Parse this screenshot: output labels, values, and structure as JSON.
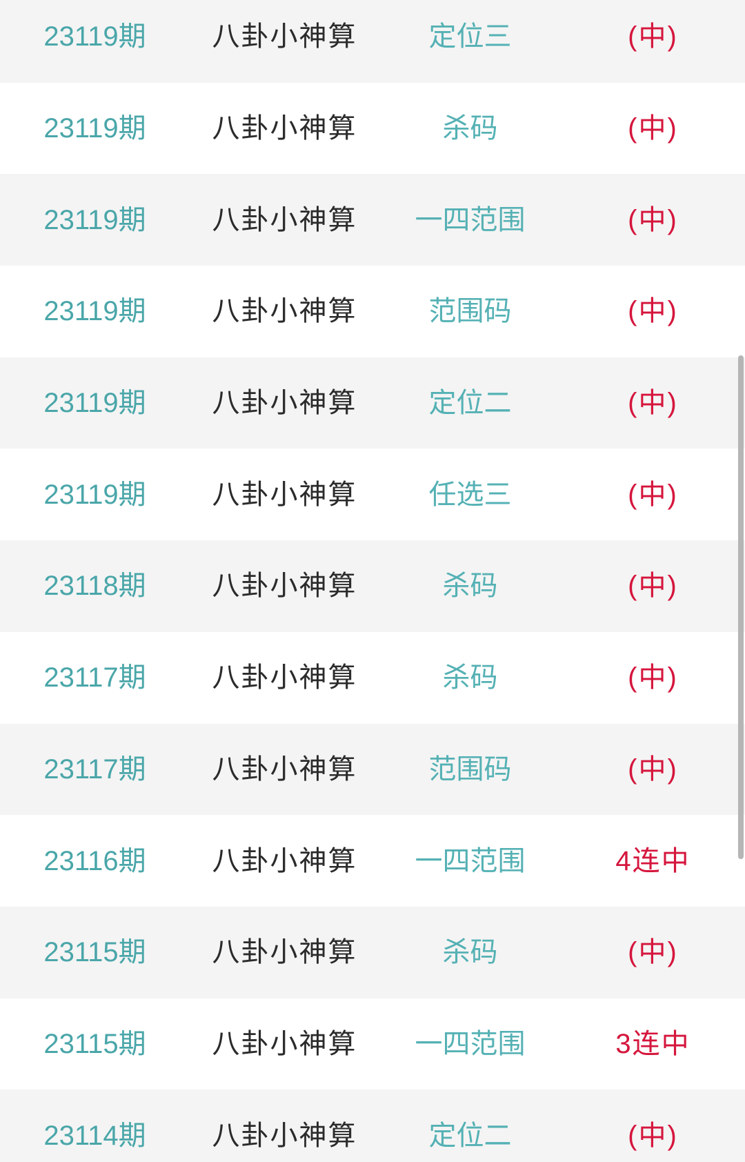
{
  "colors": {
    "period_teal": "#4aa6a9",
    "category_teal": "#55b1b4",
    "expert_dark": "#2b2b2b",
    "result_red": "#d5163d",
    "row_alt_bg": "#f4f4f4",
    "scrollbar_gray": "#b5b5b5"
  },
  "list": {
    "rows": [
      {
        "period": "23119期",
        "expert": "八卦小神算",
        "category": "定位三",
        "result": "(中)"
      },
      {
        "period": "23119期",
        "expert": "八卦小神算",
        "category": "杀码",
        "result": "(中)"
      },
      {
        "period": "23119期",
        "expert": "八卦小神算",
        "category": "一四范围",
        "result": "(中)"
      },
      {
        "period": "23119期",
        "expert": "八卦小神算",
        "category": "范围码",
        "result": "(中)"
      },
      {
        "period": "23119期",
        "expert": "八卦小神算",
        "category": "定位二",
        "result": "(中)"
      },
      {
        "period": "23119期",
        "expert": "八卦小神算",
        "category": "任选三",
        "result": "(中)"
      },
      {
        "period": "23118期",
        "expert": "八卦小神算",
        "category": "杀码",
        "result": "(中)"
      },
      {
        "period": "23117期",
        "expert": "八卦小神算",
        "category": "杀码",
        "result": "(中)"
      },
      {
        "period": "23117期",
        "expert": "八卦小神算",
        "category": "范围码",
        "result": "(中)"
      },
      {
        "period": "23116期",
        "expert": "八卦小神算",
        "category": "一四范围",
        "result": "4连中"
      },
      {
        "period": "23115期",
        "expert": "八卦小神算",
        "category": "杀码",
        "result": "(中)"
      },
      {
        "period": "23115期",
        "expert": "八卦小神算",
        "category": "一四范围",
        "result": "3连中"
      },
      {
        "period": "23114期",
        "expert": "八卦小神算",
        "category": "定位二",
        "result": "(中)"
      }
    ]
  }
}
